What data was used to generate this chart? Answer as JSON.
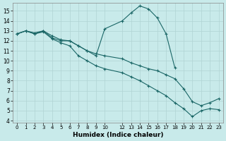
{
  "xlabel": "Humidex (Indice chaleur)",
  "bg_color": "#c8eaea",
  "grid_color": "#b0d4d4",
  "line_color": "#1a6666",
  "xlim": [
    -0.5,
    23.5
  ],
  "ylim": [
    3.8,
    15.8
  ],
  "yticks": [
    4,
    5,
    6,
    7,
    8,
    9,
    10,
    11,
    12,
    13,
    14,
    15
  ],
  "xticks": [
    0,
    1,
    2,
    3,
    4,
    5,
    6,
    7,
    8,
    9,
    10,
    12,
    13,
    14,
    15,
    16,
    17,
    18,
    19,
    20,
    21,
    22,
    23
  ],
  "curve1_x": [
    0,
    1,
    2,
    3,
    4,
    5,
    6,
    7,
    8,
    9,
    10,
    12,
    13,
    14,
    15,
    16,
    17,
    18
  ],
  "curve1_y": [
    12.7,
    13.0,
    12.8,
    13.0,
    12.5,
    12.1,
    12.0,
    11.5,
    11.0,
    10.5,
    13.2,
    14.0,
    14.8,
    15.5,
    15.2,
    14.3,
    12.7,
    9.3
  ],
  "curve2_x": [
    0,
    1,
    2,
    3,
    4,
    5,
    6,
    7,
    8,
    9,
    10,
    12,
    13,
    14,
    15,
    16,
    17,
    18,
    19,
    20,
    21,
    22,
    23
  ],
  "curve2_y": [
    12.7,
    13.0,
    12.7,
    13.0,
    12.3,
    12.0,
    12.0,
    11.5,
    11.0,
    10.7,
    10.5,
    10.2,
    9.8,
    9.5,
    9.2,
    9.0,
    8.6,
    8.2,
    7.2,
    5.9,
    5.5,
    5.8,
    6.2
  ],
  "curve3_x": [
    0,
    1,
    2,
    3,
    4,
    5,
    6,
    7,
    8,
    9,
    10,
    12,
    13,
    14,
    15,
    16,
    17,
    18,
    19,
    20,
    21,
    22,
    23
  ],
  "curve3_y": [
    12.7,
    13.0,
    12.7,
    12.9,
    12.2,
    11.8,
    11.5,
    10.5,
    10.0,
    9.5,
    9.2,
    8.8,
    8.4,
    8.0,
    7.5,
    7.0,
    6.5,
    5.8,
    5.2,
    4.4,
    5.0,
    5.2,
    5.1
  ]
}
